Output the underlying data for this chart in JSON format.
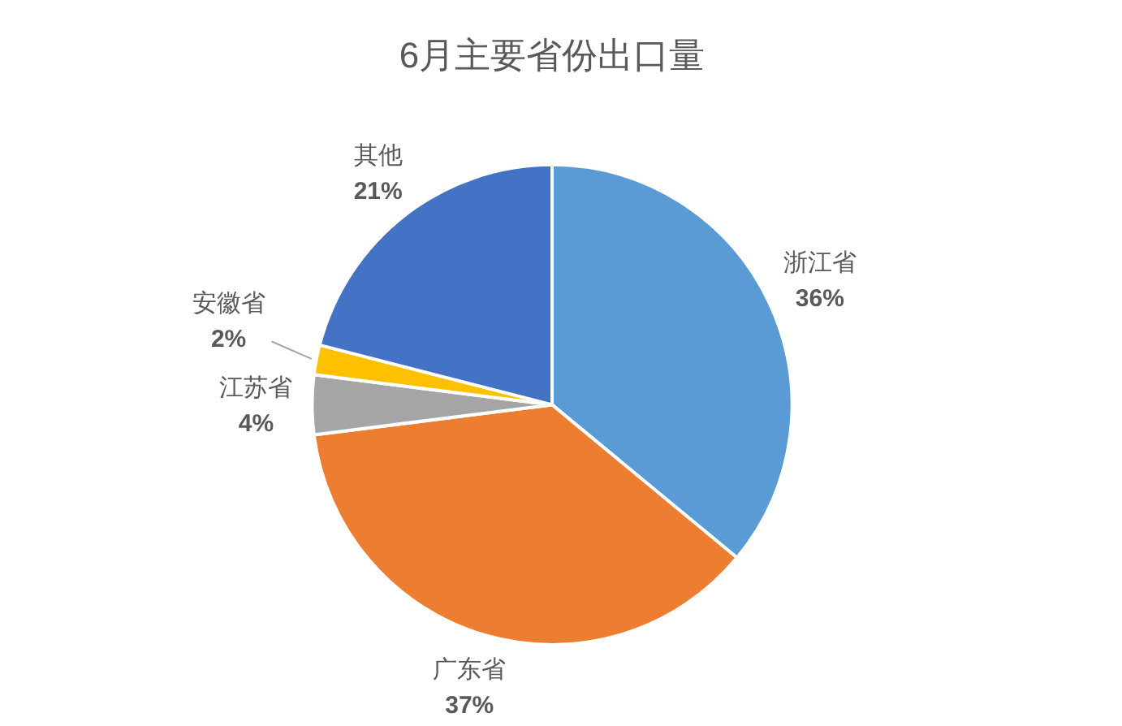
{
  "chart_data": {
    "type": "pie",
    "title": "6月主要省份出口量",
    "categories": [
      "浙江省",
      "广东省",
      "江苏省",
      "安徽省",
      "其他"
    ],
    "values": [
      36,
      37,
      4,
      2,
      21
    ],
    "colors": [
      "#5b9bd5",
      "#ed7d31",
      "#a5a5a5",
      "#ffc000",
      "#4472c4"
    ],
    "value_labels": [
      "36%",
      "37%",
      "4%",
      "2%",
      "21%"
    ]
  }
}
